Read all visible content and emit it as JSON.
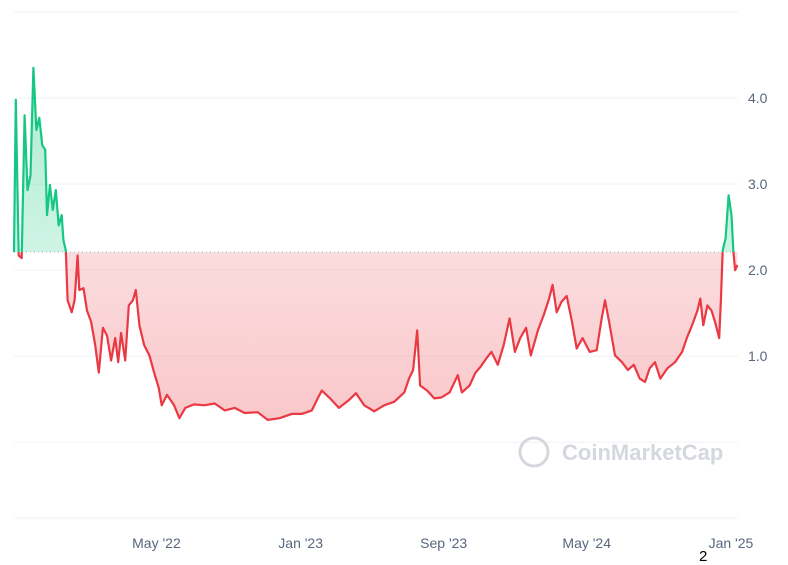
{
  "chart_data": {
    "type": "area",
    "baseline": 2.21,
    "ylim": [
      -0.88,
      5.0
    ],
    "xlim": [
      "2021-09-01",
      "2025-01-13"
    ],
    "grid": true,
    "y_ticks": [
      "1.0",
      "2.0",
      "3.0",
      "4.0"
    ],
    "y_tick_values": [
      1,
      2,
      3,
      4
    ],
    "x_ticks": [
      "May '22",
      "Jan '23",
      "Sep '23",
      "May '24",
      "Jan '25"
    ],
    "x_tick_dates": [
      "2022-05-01",
      "2023-01-01",
      "2023-09-01",
      "2024-05-01",
      "2025-01-01"
    ],
    "colors": {
      "above": "#16c784",
      "below": "#ea3943",
      "grid": "#eff2f5",
      "text": "#58667e"
    },
    "watermark": "CoinMarketCap",
    "annotation": "2",
    "series": [
      {
        "points": [
          [
            "2021-09-01",
            2.21
          ],
          [
            "2021-09-04",
            3.98
          ],
          [
            "2021-09-09",
            2.17
          ],
          [
            "2021-09-14",
            2.14
          ],
          [
            "2021-09-19",
            3.8
          ],
          [
            "2021-09-24",
            2.93
          ],
          [
            "2021-09-29",
            3.1
          ],
          [
            "2021-10-04",
            4.35
          ],
          [
            "2021-10-09",
            3.63
          ],
          [
            "2021-10-14",
            3.77
          ],
          [
            "2021-10-19",
            3.45
          ],
          [
            "2021-10-24",
            3.4
          ],
          [
            "2021-10-27",
            2.64
          ],
          [
            "2021-11-01",
            2.99
          ],
          [
            "2021-11-06",
            2.7
          ],
          [
            "2021-11-11",
            2.93
          ],
          [
            "2021-11-16",
            2.52
          ],
          [
            "2021-11-21",
            2.64
          ],
          [
            "2021-11-24",
            2.35
          ],
          [
            "2021-11-28",
            2.23
          ],
          [
            "2021-12-01",
            1.65
          ],
          [
            "2021-12-08",
            1.51
          ],
          [
            "2021-12-13",
            1.65
          ],
          [
            "2021-12-18",
            2.17
          ],
          [
            "2021-12-21",
            1.77
          ],
          [
            "2021-12-28",
            1.79
          ],
          [
            "2022-01-03",
            1.53
          ],
          [
            "2022-01-10",
            1.4
          ],
          [
            "2022-01-17",
            1.13
          ],
          [
            "2022-01-23",
            0.81
          ],
          [
            "2022-01-30",
            1.33
          ],
          [
            "2022-02-06",
            1.24
          ],
          [
            "2022-02-13",
            0.95
          ],
          [
            "2022-02-20",
            1.21
          ],
          [
            "2022-02-25",
            0.93
          ],
          [
            "2022-03-02",
            1.27
          ],
          [
            "2022-03-09",
            0.95
          ],
          [
            "2022-03-15",
            1.59
          ],
          [
            "2022-03-22",
            1.65
          ],
          [
            "2022-03-27",
            1.77
          ],
          [
            "2022-04-02",
            1.36
          ],
          [
            "2022-04-10",
            1.13
          ],
          [
            "2022-04-19",
            1.01
          ],
          [
            "2022-04-27",
            0.81
          ],
          [
            "2022-05-05",
            0.63
          ],
          [
            "2022-05-10",
            0.43
          ],
          [
            "2022-05-19",
            0.55
          ],
          [
            "2022-05-31",
            0.43
          ],
          [
            "2022-06-09",
            0.28
          ],
          [
            "2022-06-19",
            0.4
          ],
          [
            "2022-07-04",
            0.44
          ],
          [
            "2022-07-21",
            0.43
          ],
          [
            "2022-08-08",
            0.45
          ],
          [
            "2022-08-25",
            0.37
          ],
          [
            "2022-09-11",
            0.4
          ],
          [
            "2022-09-28",
            0.34
          ],
          [
            "2022-10-20",
            0.35
          ],
          [
            "2022-11-06",
            0.26
          ],
          [
            "2022-11-26",
            0.28
          ],
          [
            "2022-12-17",
            0.33
          ],
          [
            "2023-01-03",
            0.33
          ],
          [
            "2023-01-20",
            0.37
          ],
          [
            "2023-01-30",
            0.51
          ],
          [
            "2023-02-06",
            0.6
          ],
          [
            "2023-02-20",
            0.51
          ],
          [
            "2023-03-07",
            0.4
          ],
          [
            "2023-03-24",
            0.49
          ],
          [
            "2023-04-05",
            0.57
          ],
          [
            "2023-04-19",
            0.43
          ],
          [
            "2023-05-06",
            0.36
          ],
          [
            "2023-05-23",
            0.43
          ],
          [
            "2023-06-09",
            0.47
          ],
          [
            "2023-06-26",
            0.58
          ],
          [
            "2023-07-04",
            0.74
          ],
          [
            "2023-07-11",
            0.84
          ],
          [
            "2023-07-18",
            1.3
          ],
          [
            "2023-07-23",
            0.66
          ],
          [
            "2023-08-04",
            0.6
          ],
          [
            "2023-08-16",
            0.51
          ],
          [
            "2023-08-28",
            0.52
          ],
          [
            "2023-09-11",
            0.58
          ],
          [
            "2023-09-25",
            0.78
          ],
          [
            "2023-10-02",
            0.58
          ],
          [
            "2023-10-15",
            0.66
          ],
          [
            "2023-10-25",
            0.81
          ],
          [
            "2023-11-03",
            0.88
          ],
          [
            "2023-11-13",
            0.98
          ],
          [
            "2023-11-21",
            1.05
          ],
          [
            "2023-12-02",
            0.9
          ],
          [
            "2023-12-12",
            1.13
          ],
          [
            "2023-12-22",
            1.44
          ],
          [
            "2023-12-31",
            1.05
          ],
          [
            "2024-01-09",
            1.21
          ],
          [
            "2024-01-19",
            1.33
          ],
          [
            "2024-01-27",
            1.01
          ],
          [
            "2024-02-08",
            1.3
          ],
          [
            "2024-02-18",
            1.48
          ],
          [
            "2024-02-27",
            1.67
          ],
          [
            "2024-03-04",
            1.83
          ],
          [
            "2024-03-11",
            1.51
          ],
          [
            "2024-03-19",
            1.63
          ],
          [
            "2024-03-28",
            1.7
          ],
          [
            "2024-04-06",
            1.4
          ],
          [
            "2024-04-14",
            1.09
          ],
          [
            "2024-04-24",
            1.21
          ],
          [
            "2024-05-06",
            1.05
          ],
          [
            "2024-05-18",
            1.07
          ],
          [
            "2024-05-26",
            1.42
          ],
          [
            "2024-06-01",
            1.65
          ],
          [
            "2024-06-08",
            1.4
          ],
          [
            "2024-06-18",
            1.01
          ],
          [
            "2024-06-30",
            0.93
          ],
          [
            "2024-07-10",
            0.84
          ],
          [
            "2024-07-20",
            0.9
          ],
          [
            "2024-07-30",
            0.74
          ],
          [
            "2024-08-08",
            0.7
          ],
          [
            "2024-08-16",
            0.86
          ],
          [
            "2024-08-25",
            0.93
          ],
          [
            "2024-09-03",
            0.74
          ],
          [
            "2024-09-15",
            0.86
          ],
          [
            "2024-09-28",
            0.93
          ],
          [
            "2024-10-10",
            1.05
          ],
          [
            "2024-10-18",
            1.21
          ],
          [
            "2024-10-27",
            1.36
          ],
          [
            "2024-11-05",
            1.53
          ],
          [
            "2024-11-10",
            1.67
          ],
          [
            "2024-11-15",
            1.36
          ],
          [
            "2024-11-22",
            1.59
          ],
          [
            "2024-11-29",
            1.53
          ],
          [
            "2024-12-05",
            1.4
          ],
          [
            "2024-12-12",
            1.21
          ],
          [
            "2024-12-15",
            1.65
          ],
          [
            "2024-12-18",
            2.23
          ],
          [
            "2024-12-23",
            2.37
          ],
          [
            "2024-12-28",
            2.87
          ],
          [
            "2025-01-02",
            2.64
          ],
          [
            "2025-01-05",
            2.23
          ],
          [
            "2025-01-08",
            2.0
          ],
          [
            "2025-01-12",
            2.06
          ]
        ]
      }
    ]
  }
}
